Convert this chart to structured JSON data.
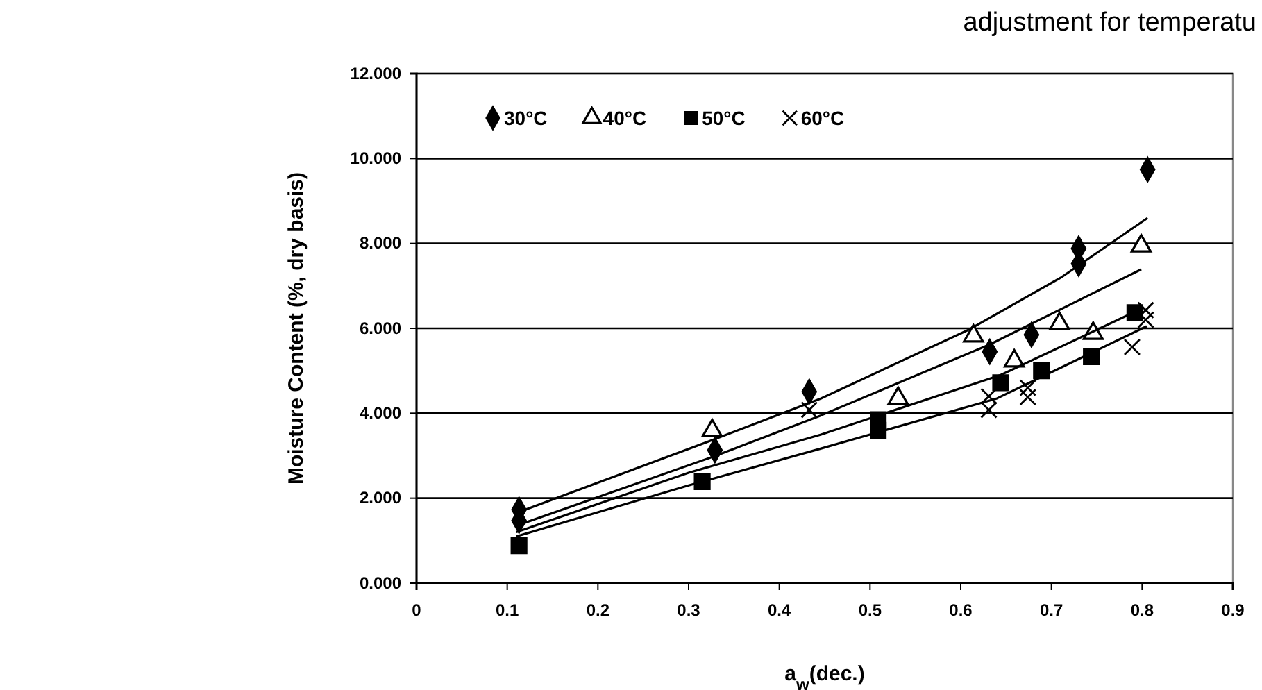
{
  "chart_data": {
    "type": "scatter",
    "xlabel": "a$_{w}$(dec.)",
    "ylabel": "Moisture Content (%, dry basis)",
    "annotations": [
      "adjustment for temperatu"
    ],
    "xlim": [
      0,
      0.9
    ],
    "xticks": [
      0,
      0.1,
      0.2,
      0.3,
      0.4,
      0.5,
      0.6,
      0.7,
      0.8,
      0.9
    ],
    "ylim": [
      0,
      12
    ],
    "yticks": [
      {
        "value": 0,
        "label": "0.000"
      },
      {
        "value": 2,
        "label": "2.000"
      },
      {
        "value": 4,
        "label": "4.000"
      },
      {
        "value": 6,
        "label": "6.000"
      },
      {
        "value": 8,
        "label": "8.000"
      },
      {
        "value": 10,
        "label": "10.000"
      },
      {
        "value": 12,
        "label": "12.000"
      }
    ],
    "grid": "y",
    "legend": "top left",
    "series": [
      {
        "name": "30°C",
        "color": "#000000",
        "marker": "diamond",
        "x": [
          0.113,
          0.113,
          0.329,
          0.433,
          0.632,
          0.678,
          0.73,
          0.73,
          0.806
        ],
        "values": [
          1.73,
          1.47,
          3.13,
          4.51,
          5.45,
          5.85,
          7.88,
          7.52,
          9.74
        ]
      },
      {
        "name": "40°C",
        "color": "#000000",
        "marker": "triangle",
        "x": [
          0.326,
          0.531,
          0.614,
          0.659,
          0.709,
          0.746,
          0.799
        ],
        "values": [
          3.59,
          4.35,
          5.82,
          5.23,
          6.11,
          5.88,
          7.94
        ]
      },
      {
        "name": "50°C",
        "color": "#000000",
        "marker": "square",
        "x": [
          0.113,
          0.315,
          0.509,
          0.509,
          0.644,
          0.689,
          0.744,
          0.792
        ],
        "values": [
          0.88,
          2.39,
          3.85,
          3.6,
          4.72,
          5.0,
          5.33,
          6.37
        ]
      },
      {
        "name": "60°C",
        "color": "#000000",
        "marker": "cross",
        "x": [
          0.433,
          0.631,
          0.631,
          0.674,
          0.674,
          0.789,
          0.804,
          0.804
        ],
        "values": [
          4.08,
          4.08,
          4.4,
          4.38,
          4.6,
          5.56,
          6.43,
          6.2
        ]
      },
      {
        "type": "line",
        "color": "#000000",
        "marker": "none",
        "x": [
          0.11,
          0.33,
          0.446,
          0.61,
          0.71,
          0.806
        ],
        "values": [
          1.65,
          3.4,
          4.35,
          5.98,
          7.19,
          8.6
        ]
      },
      {
        "type": "line",
        "color": "#000000",
        "marker": "none",
        "x": [
          0.11,
          0.33,
          0.446,
          0.632,
          0.799
        ],
        "values": [
          1.35,
          3.0,
          3.95,
          5.62,
          7.39
        ]
      },
      {
        "type": "line",
        "color": "#000000",
        "marker": "none",
        "x": [
          0.11,
          0.3,
          0.446,
          0.644,
          0.8
        ],
        "values": [
          1.2,
          2.6,
          3.5,
          4.9,
          6.47
        ]
      },
      {
        "type": "line",
        "color": "#000000",
        "marker": "none",
        "x": [
          0.11,
          0.3,
          0.446,
          0.64,
          0.805
        ],
        "values": [
          1.1,
          2.3,
          3.17,
          4.35,
          6.05
        ]
      }
    ]
  }
}
